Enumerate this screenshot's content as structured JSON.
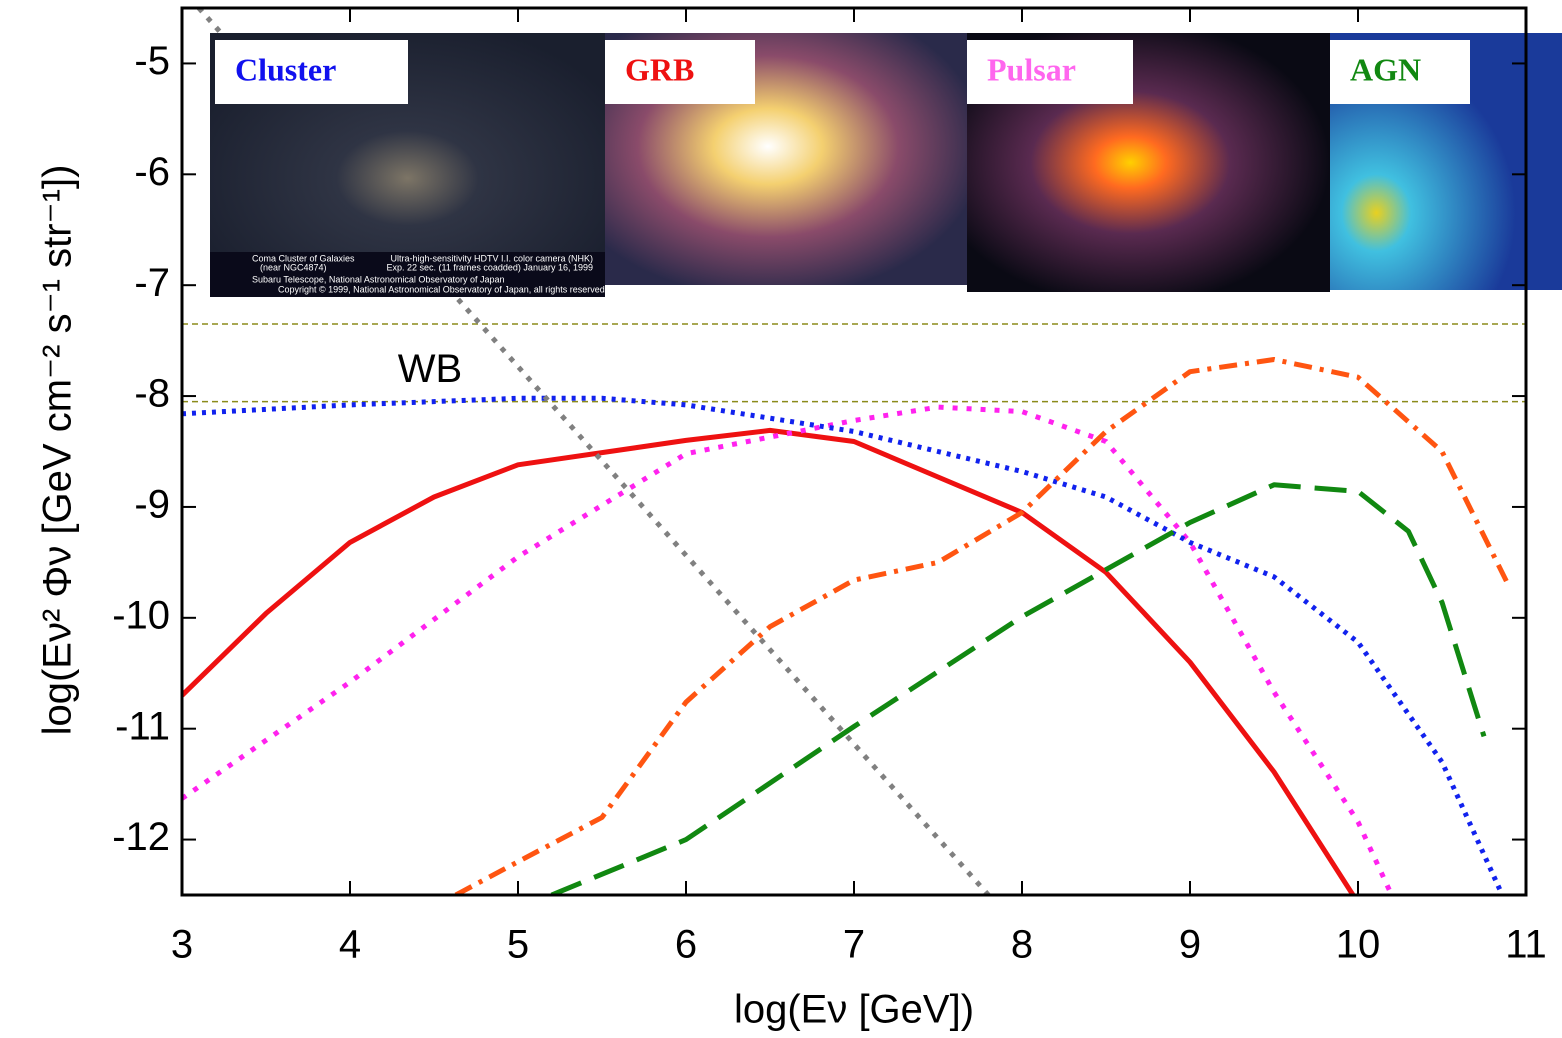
{
  "chart_data": {
    "type": "line",
    "xlabel": "log(Eν [GeV])",
    "ylabel": "log(Eν² Φν [GeV cm⁻² s⁻¹ str⁻¹])",
    "xlim": [
      3,
      11
    ],
    "xticks": [
      3,
      4,
      5,
      6,
      7,
      8,
      9,
      10,
      11
    ],
    "ylim": [
      -12.5,
      -4.5
    ],
    "yticks": [
      -5,
      -6,
      -7,
      -8,
      -9,
      -10,
      -11,
      -12
    ],
    "reference_lines": [
      {
        "value": -7.35,
        "color": "#8b8b1a"
      },
      {
        "value": -8.05,
        "color": "#8b8b1a",
        "label": "WB"
      }
    ],
    "series": [
      {
        "color": "#ee1111",
        "dash": "none",
        "x": [
          3,
          3.5,
          4,
          4.5,
          5,
          6,
          6.5,
          7,
          7.5,
          8,
          8.5,
          9,
          9.5,
          9.97
        ],
        "values": [
          -10.7,
          -9.96,
          -9.32,
          -8.91,
          -8.62,
          -8.4,
          -8.31,
          -8.41,
          -8.73,
          -9.05,
          -9.59,
          -10.4,
          -11.39,
          -12.5
        ]
      },
      {
        "color": "#ff22ee",
        "dash": "5 9",
        "x": [
          3,
          4,
          5,
          6,
          7,
          7.5,
          8,
          8.5,
          9,
          9.5,
          10,
          10.2
        ],
        "values": [
          -11.63,
          -10.58,
          -9.45,
          -8.52,
          -8.22,
          -8.1,
          -8.14,
          -8.41,
          -9.32,
          -10.67,
          -11.84,
          -12.5
        ]
      },
      {
        "color": "#1122ee",
        "dash": "4 6",
        "x": [
          3,
          4,
          5,
          5.5,
          6,
          7,
          8,
          8.5,
          9,
          9.5,
          10,
          10.5,
          10.85
        ],
        "values": [
          -8.16,
          -8.08,
          -8.02,
          -8.02,
          -8.08,
          -8.32,
          -8.68,
          -8.91,
          -9.32,
          -9.63,
          -10.22,
          -11.3,
          -12.47
        ]
      },
      {
        "color": "#ff5511",
        "dash": "18 8 4 8",
        "x": [
          4.63,
          5,
          5.5,
          6,
          6.5,
          7,
          7.5,
          8,
          8.5,
          9,
          9.5,
          10,
          10.5,
          10.9
        ],
        "values": [
          -12.5,
          -12.2,
          -11.8,
          -10.76,
          -10.08,
          -9.66,
          -9.5,
          -9.05,
          -8.32,
          -7.78,
          -7.67,
          -7.83,
          -8.5,
          -9.72
        ]
      },
      {
        "color": "#118811",
        "dash": "32 14",
        "x": [
          5.2,
          6,
          7,
          8,
          9,
          9.5,
          10,
          10.3,
          10.5,
          10.75
        ],
        "values": [
          -12.5,
          -12.0,
          -10.98,
          -9.99,
          -9.14,
          -8.8,
          -8.86,
          -9.22,
          -9.86,
          -11.07
        ]
      },
      {
        "color": "#808080",
        "dash": "5 8",
        "x": [
          3.1,
          7.8
        ],
        "values": [
          -4.5,
          -12.5
        ]
      }
    ],
    "panels": [
      {
        "label": "Cluster",
        "color": "#1111ee"
      },
      {
        "label": "GRB",
        "color": "#ee1111"
      },
      {
        "label": "Pulsar",
        "color": "#ff66ee"
      },
      {
        "label": "AGN",
        "color": "#118811"
      }
    ],
    "panel_captions": [
      "Coma Cluster of Galaxies",
      "(near NGC4874)",
      "Ultra-high-sensitivity HDTV I.I. color camera (NHK)",
      "Exp. 22 sec. (11 frames coadded)    January 16, 1999",
      "Subaru Telescope, National Astronomical Observatory of Japan",
      "Copyright © 1999, National Astronomical Observatory of Japan, all rights reserved"
    ]
  }
}
